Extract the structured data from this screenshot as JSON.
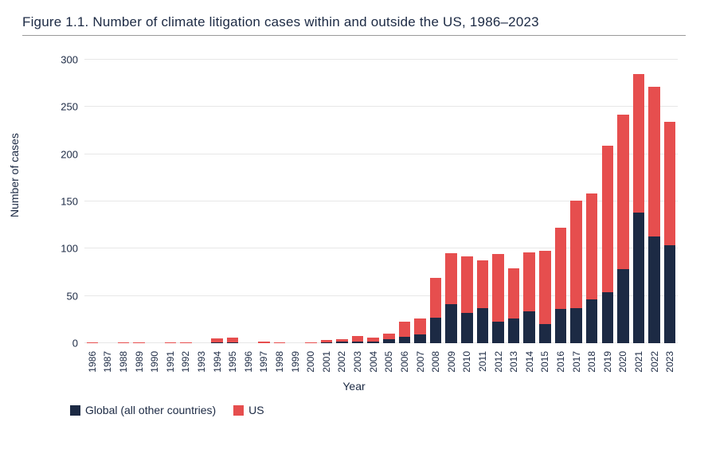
{
  "figure": {
    "title": "Figure 1.1. Number of climate litigation cases within and outside the US, 1986–2023",
    "chart": {
      "type": "stacked-bar",
      "x_label": "Year",
      "y_label": "Number of cases",
      "ylim": [
        0,
        310
      ],
      "ytick_step": 50,
      "yticks": [
        0,
        50,
        100,
        150,
        200,
        250,
        300
      ],
      "bar_width_ratio": 0.74,
      "grid_color": "#e7e7e7",
      "background_color": "#ffffff",
      "axis_text_color": "#1c2a44",
      "title_fontsize": 17,
      "label_fontsize": 14,
      "tick_fontsize": 12,
      "series": [
        {
          "key": "global",
          "label": "Global (all other countries)",
          "color": "#1c2a44"
        },
        {
          "key": "us",
          "label": "US",
          "color": "#e64e4e"
        }
      ],
      "categories": [
        "1986",
        "1987",
        "1988",
        "1989",
        "1990",
        "1991",
        "1992",
        "1993",
        "1994",
        "1995",
        "1996",
        "1997",
        "1998",
        "1999",
        "2000",
        "2001",
        "2002",
        "2003",
        "2004",
        "2005",
        "2006",
        "2007",
        "2008",
        "2009",
        "2010",
        "2011",
        "2012",
        "2013",
        "2014",
        "2015",
        "2016",
        "2017",
        "2018",
        "2019",
        "2020",
        "2021",
        "2022",
        "2023"
      ],
      "data": {
        "global": [
          0,
          0,
          0,
          0,
          0,
          0,
          0,
          0,
          1,
          1,
          0,
          0,
          0,
          0,
          0,
          1,
          2,
          2,
          2,
          4,
          7,
          9,
          27,
          41,
          32,
          37,
          23,
          26,
          34,
          20,
          36,
          37,
          46,
          54,
          78,
          138,
          113,
          104
        ],
        "us": [
          1,
          0,
          1,
          1,
          0,
          1,
          1,
          0,
          4,
          5,
          0,
          2,
          1,
          0,
          1,
          2,
          2,
          6,
          4,
          6,
          16,
          17,
          42,
          54,
          60,
          51,
          71,
          53,
          62,
          78,
          86,
          114,
          112,
          155,
          164,
          147,
          158,
          130
        ]
      }
    }
  }
}
